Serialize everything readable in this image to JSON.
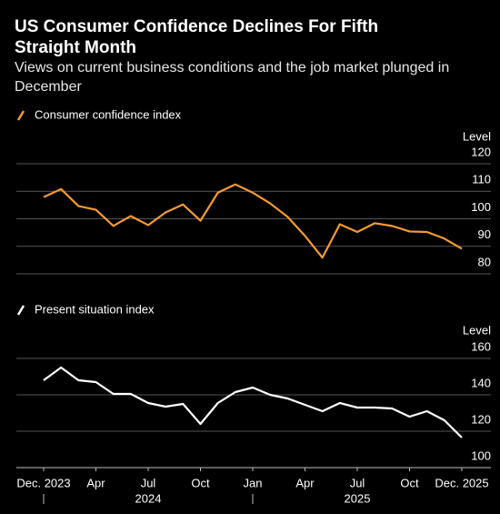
{
  "title": "US Consumer Confidence Declines For Fifth Straight Month",
  "subtitle": "Views on current business conditions and the job market plunged in December",
  "chart_data": [
    {
      "type": "line",
      "y_label": "Level",
      "series": [
        {
          "name": "Consumer confidence index",
          "color": "#f59b32",
          "values": [
            107.9,
            110.8,
            104.6,
            103.3,
            97.4,
            101,
            97.7,
            102.3,
            105.2,
            99.3,
            109.5,
            112.5,
            109.5,
            105.6,
            100.7,
            93.8,
            85.9,
            98,
            95.2,
            98.4,
            97.4,
            95.4,
            95.2,
            92.8,
            89.1
          ]
        }
      ],
      "ylim": [
        80,
        120
      ],
      "yticks": [
        80,
        90,
        100,
        110,
        120
      ],
      "grid": true
    },
    {
      "type": "line",
      "y_label": "Level",
      "categories": [
        "Dec. 2023",
        null,
        null,
        "Apr",
        null,
        null,
        "Jul",
        null,
        null,
        "Oct",
        null,
        null,
        "Jan",
        null,
        null,
        "Apr",
        null,
        null,
        "Jul",
        null,
        null,
        "Oct",
        null,
        null,
        "Dec. 2025"
      ],
      "x_groups": [
        "2024",
        "2025"
      ],
      "series": [
        {
          "name": "Present situation index",
          "color": "#ffffff",
          "values": [
            148,
            155,
            148,
            147,
            140.5,
            140.5,
            135.5,
            133.5,
            135,
            124,
            135.5,
            141.5,
            144,
            140,
            138,
            134.5,
            131,
            135.5,
            133,
            133,
            132.5,
            128,
            131,
            126,
            116.5
          ]
        }
      ],
      "ylim": [
        100,
        160
      ],
      "yticks": [
        100,
        120,
        140,
        160
      ],
      "grid": true
    }
  ]
}
